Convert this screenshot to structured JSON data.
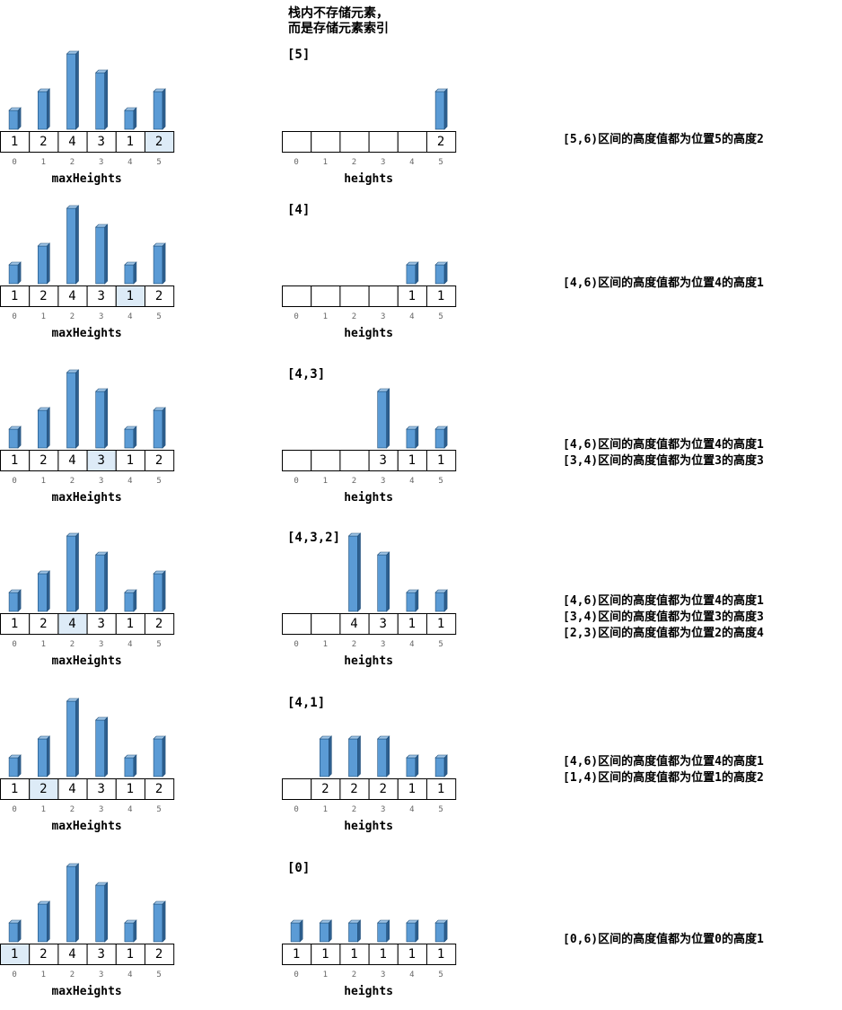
{
  "note_lines": [
    "栈内不存储元素，",
    "而是存储元素索引"
  ],
  "left_label": "maxHeights",
  "right_label": "heights",
  "index_labels": [
    "0",
    "1",
    "2",
    "3",
    "4",
    "5"
  ],
  "colors": {
    "bar_front": "#5b9bd5",
    "bar_side": "#2e5f8f",
    "bar_top": "#9dc3e6",
    "highlight": "#ddebf7",
    "border": "#000000"
  },
  "steps": [
    {
      "left_values": [
        1,
        2,
        4,
        3,
        1,
        2
      ],
      "highlight": 5,
      "stack": "[5]",
      "right_values": [
        null,
        null,
        null,
        null,
        null,
        2
      ],
      "descriptions": [
        "[5,6)区间的高度值都为位置5的高度2"
      ]
    },
    {
      "left_values": [
        1,
        2,
        4,
        3,
        1,
        2
      ],
      "highlight": 4,
      "stack": "[4]",
      "right_values": [
        null,
        null,
        null,
        null,
        1,
        1
      ],
      "descriptions": [
        "[4,6)区间的高度值都为位置4的高度1"
      ]
    },
    {
      "left_values": [
        1,
        2,
        4,
        3,
        1,
        2
      ],
      "highlight": 3,
      "stack": "[4,3]",
      "right_values": [
        null,
        null,
        null,
        3,
        1,
        1
      ],
      "descriptions": [
        "[4,6)区间的高度值都为位置4的高度1",
        "[3,4)区间的高度值都为位置3的高度3"
      ]
    },
    {
      "left_values": [
        1,
        2,
        4,
        3,
        1,
        2
      ],
      "highlight": 2,
      "stack": "[4,3,2]",
      "right_values": [
        null,
        null,
        4,
        3,
        1,
        1
      ],
      "descriptions": [
        "[4,6)区间的高度值都为位置4的高度1",
        "[3,4)区间的高度值都为位置3的高度3",
        "[2,3)区间的高度值都为位置2的高度4"
      ]
    },
    {
      "left_values": [
        1,
        2,
        4,
        3,
        1,
        2
      ],
      "highlight": 1,
      "stack": "[4,1]",
      "right_values": [
        null,
        2,
        2,
        2,
        1,
        1
      ],
      "descriptions": [
        "[4,6)区间的高度值都为位置4的高度1",
        "[1,4)区间的高度值都为位置1的高度2"
      ]
    },
    {
      "left_values": [
        1,
        2,
        4,
        3,
        1,
        2
      ],
      "highlight": 0,
      "stack": "[0]",
      "right_values": [
        1,
        1,
        1,
        1,
        1,
        1
      ],
      "descriptions": [
        "[0,6)区间的高度值都为位置0的高度1"
      ]
    }
  ]
}
